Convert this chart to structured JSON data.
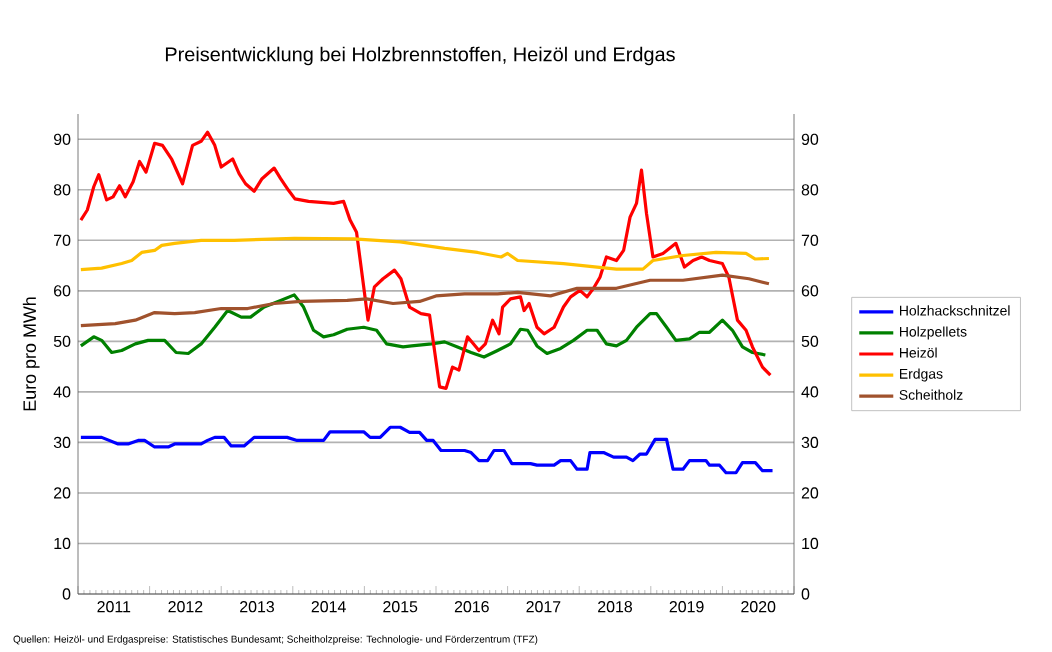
{
  "chart_data": {
    "type": "line",
    "title": "Preisentwicklung bei Holzbrennstoffen, Heizöl und Erdgas",
    "ylabel": "Euro pro MWh",
    "annotations": [
      "Quellen: Heizöl- und Erdgaspreise: Statistisches Bundesamt; Scheitholzpreise: Technologie- und Förderzentrum (TFZ)"
    ],
    "xlim": [
      2011,
      2021
    ],
    "xticks": [
      {
        "value": 2011,
        "label": null
      },
      {
        "value": 2011.5,
        "label": "2011"
      },
      {
        "value": 2012,
        "label": null
      },
      {
        "value": 2012.5,
        "label": "2012"
      },
      {
        "value": 2013,
        "label": null
      },
      {
        "value": 2013.5,
        "label": "2013"
      },
      {
        "value": 2014,
        "label": null
      },
      {
        "value": 2014.5,
        "label": "2014"
      },
      {
        "value": 2015,
        "label": null
      },
      {
        "value": 2015.5,
        "label": "2015"
      },
      {
        "value": 2016,
        "label": null
      },
      {
        "value": 2016.5,
        "label": "2016"
      },
      {
        "value": 2017,
        "label": null
      },
      {
        "value": 2017.5,
        "label": "2017"
      },
      {
        "value": 2018,
        "label": null
      },
      {
        "value": 2018.5,
        "label": "2018"
      },
      {
        "value": 2019,
        "label": null
      },
      {
        "value": 2019.5,
        "label": "2019"
      },
      {
        "value": 2020,
        "label": null
      },
      {
        "value": 2020.5,
        "label": "2020"
      },
      {
        "value": 2021,
        "label": null
      }
    ],
    "ylim": [
      0,
      95
    ],
    "yticks": [
      0,
      10,
      20,
      30,
      40,
      50,
      60,
      70,
      80,
      90
    ],
    "y2lim": [
      0,
      95
    ],
    "y2ticks": [
      0,
      10,
      20,
      30,
      40,
      50,
      60,
      70,
      80,
      90
    ],
    "grid": "y",
    "legend": "right",
    "line_style": "solid",
    "series": [
      {
        "name": "Holzhackschnitzel",
        "color": "#0000ff",
        "x": [
          2011.04,
          2011.33,
          2011.56,
          2011.7,
          2011.84,
          2011.93,
          2012.07,
          2012.26,
          2012.35,
          2012.72,
          2012.81,
          2012.91,
          2013.04,
          2013.14,
          2013.32,
          2013.46,
          2013.92,
          2014.06,
          2014.43,
          2014.52,
          2014.99,
          2015.08,
          2015.22,
          2015.36,
          2015.5,
          2015.63,
          2015.77,
          2015.87,
          2015.96,
          2016.07,
          2016.4,
          2016.49,
          2016.6,
          2016.72,
          2016.81,
          2016.95,
          2017.06,
          2017.32,
          2017.41,
          2017.65,
          2017.74,
          2017.88,
          2017.97,
          2018.11,
          2018.15,
          2018.34,
          2018.48,
          2018.66,
          2018.75,
          2018.85,
          2018.94,
          2019.06,
          2019.22,
          2019.31,
          2019.45,
          2019.54,
          2019.77,
          2019.82,
          2019.96,
          2020.05,
          2020.19,
          2020.28,
          2020.46,
          2020.56,
          2020.7
        ],
        "values": [
          31,
          31,
          29.7,
          29.7,
          30.4,
          30.4,
          29.1,
          29.1,
          29.7,
          29.7,
          30.4,
          31,
          31,
          29.3,
          29.3,
          31,
          31,
          30.4,
          30.4,
          32.1,
          32.1,
          31,
          31,
          33,
          33,
          32,
          32,
          30.4,
          30.4,
          28.4,
          28.4,
          28,
          26.4,
          26.4,
          28.4,
          28.4,
          25.8,
          25.8,
          25.5,
          25.5,
          26.4,
          26.4,
          24.7,
          24.7,
          28,
          28,
          27.1,
          27.1,
          26.4,
          27.7,
          27.7,
          30.6,
          30.6,
          24.7,
          24.7,
          26.4,
          26.4,
          25.5,
          25.5,
          24,
          24,
          26,
          26,
          24.4,
          24.4
        ]
      },
      {
        "name": "Holzpellets",
        "color": "#008000",
        "x": [
          2011.04,
          2011.22,
          2011.33,
          2011.47,
          2011.61,
          2011.8,
          2011.98,
          2012.21,
          2012.37,
          2012.54,
          2012.72,
          2012.91,
          2013.09,
          2013.28,
          2013.41,
          2013.6,
          2013.83,
          2014.02,
          2014.15,
          2014.29,
          2014.43,
          2014.57,
          2014.76,
          2014.99,
          2015.17,
          2015.31,
          2015.54,
          2015.66,
          2015.94,
          2016.12,
          2016.3,
          2016.49,
          2016.67,
          2016.86,
          2017.04,
          2017.18,
          2017.28,
          2017.41,
          2017.55,
          2017.74,
          2017.92,
          2018.11,
          2018.25,
          2018.38,
          2018.52,
          2018.66,
          2018.8,
          2018.99,
          2019.08,
          2019.22,
          2019.35,
          2019.54,
          2019.68,
          2019.82,
          2020.0,
          2020.14,
          2020.28,
          2020.42,
          2020.6
        ],
        "values": [
          49.1,
          50.9,
          50.2,
          47.8,
          48.2,
          49.5,
          50.2,
          50.2,
          47.8,
          47.6,
          49.5,
          52.8,
          56.1,
          54.8,
          54.8,
          56.8,
          58.1,
          59.2,
          56.8,
          52.2,
          50.9,
          51.3,
          52.4,
          52.8,
          52.2,
          49.5,
          48.9,
          49.1,
          49.5,
          49.9,
          48.9,
          47.8,
          46.9,
          48.2,
          49.5,
          52.4,
          52.2,
          49.1,
          47.6,
          48.6,
          50.2,
          52.2,
          52.2,
          49.5,
          49.1,
          50.2,
          52.8,
          55.5,
          55.5,
          52.8,
          50.2,
          50.5,
          51.8,
          51.8,
          54.2,
          52.2,
          48.9,
          47.8,
          47.3
        ]
      },
      {
        "name": "Heizöl",
        "color": "#ff0000",
        "x": [
          2011.04,
          2011.13,
          2011.22,
          2011.29,
          2011.4,
          2011.49,
          2011.58,
          2011.66,
          2011.77,
          2011.86,
          2011.95,
          2012.07,
          2012.18,
          2012.31,
          2012.46,
          2012.6,
          2012.72,
          2012.81,
          2012.91,
          2013.0,
          2013.16,
          2013.25,
          2013.34,
          2013.46,
          2013.57,
          2013.74,
          2013.83,
          2013.94,
          2014.03,
          2014.22,
          2014.57,
          2014.71,
          2014.8,
          2014.89,
          2014.99,
          2015.05,
          2015.14,
          2015.26,
          2015.42,
          2015.51,
          2015.63,
          2015.79,
          2015.91,
          2016.05,
          2016.14,
          2016.23,
          2016.32,
          2016.44,
          2016.6,
          2016.69,
          2016.79,
          2016.88,
          2016.93,
          2017.04,
          2017.18,
          2017.23,
          2017.3,
          2017.41,
          2017.51,
          2017.65,
          2017.78,
          2017.88,
          2018.01,
          2018.11,
          2018.2,
          2018.29,
          2018.38,
          2018.52,
          2018.62,
          2018.71,
          2018.8,
          2018.87,
          2018.94,
          2019.03,
          2019.17,
          2019.35,
          2019.47,
          2019.59,
          2019.71,
          2019.82,
          2020.0,
          2020.09,
          2020.21,
          2020.33,
          2020.42,
          2020.56,
          2020.67
        ],
        "values": [
          74,
          76,
          80.6,
          83,
          78,
          78.6,
          80.8,
          78.6,
          81.6,
          85.6,
          83.5,
          89.2,
          88.8,
          86,
          81.2,
          88.8,
          89.6,
          91.4,
          88.8,
          84.5,
          86.1,
          83.2,
          81.2,
          79.7,
          82.2,
          84.3,
          82.2,
          79.9,
          78.2,
          77.7,
          77.3,
          77.7,
          74,
          71.6,
          60.8,
          54.2,
          60.8,
          62.4,
          64.1,
          62.4,
          56.8,
          55.5,
          55.2,
          41,
          40.7,
          44.9,
          44.3,
          50.9,
          48.2,
          49.5,
          54.2,
          51.5,
          56.8,
          58.4,
          58.8,
          56.1,
          57.5,
          52.8,
          51.5,
          52.8,
          56.8,
          58.8,
          60.1,
          58.8,
          60.5,
          62.7,
          66.7,
          66,
          68,
          74.6,
          77.3,
          83.9,
          75.3,
          66.7,
          67.4,
          69.4,
          64.7,
          66,
          66.7,
          66,
          65.4,
          62.7,
          54.2,
          52.2,
          48.9,
          44.9,
          43.3
        ]
      },
      {
        "name": "Erdgas",
        "color": "#ffc000",
        "x": [
          2011.04,
          2011.33,
          2011.61,
          2011.75,
          2011.89,
          2012.07,
          2012.17,
          2012.35,
          2012.72,
          2013.18,
          2014.02,
          2014.85,
          2015.5,
          2016.12,
          2016.58,
          2016.91,
          2017.0,
          2017.14,
          2017.78,
          2018.25,
          2018.52,
          2018.89,
          2019.03,
          2019.45,
          2019.91,
          2020.33,
          2020.46,
          2020.65
        ],
        "values": [
          64.2,
          64.5,
          65.4,
          66,
          67.6,
          68,
          69,
          69.4,
          70,
          70,
          70.4,
          70.3,
          69.7,
          68.4,
          67.6,
          66.7,
          67.4,
          66,
          65.4,
          64.7,
          64.3,
          64.3,
          66,
          67,
          67.6,
          67.4,
          66.3,
          66.4
        ]
      },
      {
        "name": "Scheitholz",
        "color": "#a0522d",
        "x": [
          2011.04,
          2011.52,
          2011.8,
          2012.07,
          2012.35,
          2012.63,
          2013.0,
          2013.37,
          2013.74,
          2014.11,
          2014.76,
          2015.03,
          2015.4,
          2015.77,
          2016.0,
          2016.4,
          2016.86,
          2017.14,
          2017.6,
          2017.97,
          2018.52,
          2018.99,
          2019.45,
          2020.0,
          2020.37,
          2020.65
        ],
        "values": [
          53.1,
          53.5,
          54.2,
          55.7,
          55.5,
          55.7,
          56.5,
          56.5,
          57.5,
          57.9,
          58.1,
          58.4,
          57.5,
          57.9,
          59,
          59.4,
          59.4,
          59.7,
          59,
          60.5,
          60.5,
          62.1,
          62.1,
          63.1,
          62.4,
          61.4
        ]
      }
    ]
  }
}
